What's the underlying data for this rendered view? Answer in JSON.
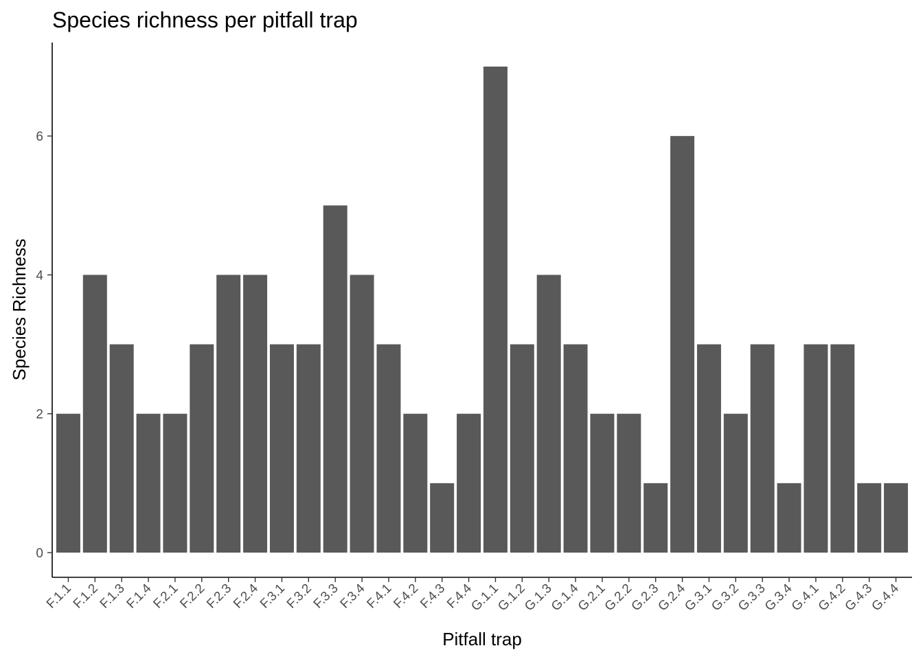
{
  "chart_data": {
    "type": "bar",
    "title": "Species richness per pitfall trap",
    "xlabel": "Pitfall trap",
    "ylabel": "Species Richness",
    "categories": [
      "F.1.1",
      "F.1.2",
      "F.1.3",
      "F.1.4",
      "F.2.1",
      "F.2.2",
      "F.2.3",
      "F.2.4",
      "F.3.1",
      "F.3.2",
      "F.3.3",
      "F.3.4",
      "F.4.1",
      "F.4.2",
      "F.4.3",
      "F.4.4",
      "G.1.1",
      "G.1.2",
      "G.1.3",
      "G.1.4",
      "G.2.1",
      "G.2.2",
      "G.2.3",
      "G.2.4",
      "G.3.1",
      "G.3.2",
      "G.3.3",
      "G.3.4",
      "G.4.1",
      "G.4.2",
      "G.4.3",
      "G.4.4"
    ],
    "values": [
      2,
      4,
      3,
      2,
      2,
      3,
      4,
      4,
      3,
      3,
      5,
      4,
      3,
      2,
      1,
      2,
      7,
      3,
      4,
      3,
      2,
      2,
      1,
      6,
      3,
      2,
      3,
      1,
      3,
      3,
      1,
      1
    ],
    "ylim": [
      0,
      7
    ],
    "yticks": [
      0,
      2,
      4,
      6
    ],
    "bar_color": "#595959",
    "grid": false,
    "legend": "none"
  }
}
